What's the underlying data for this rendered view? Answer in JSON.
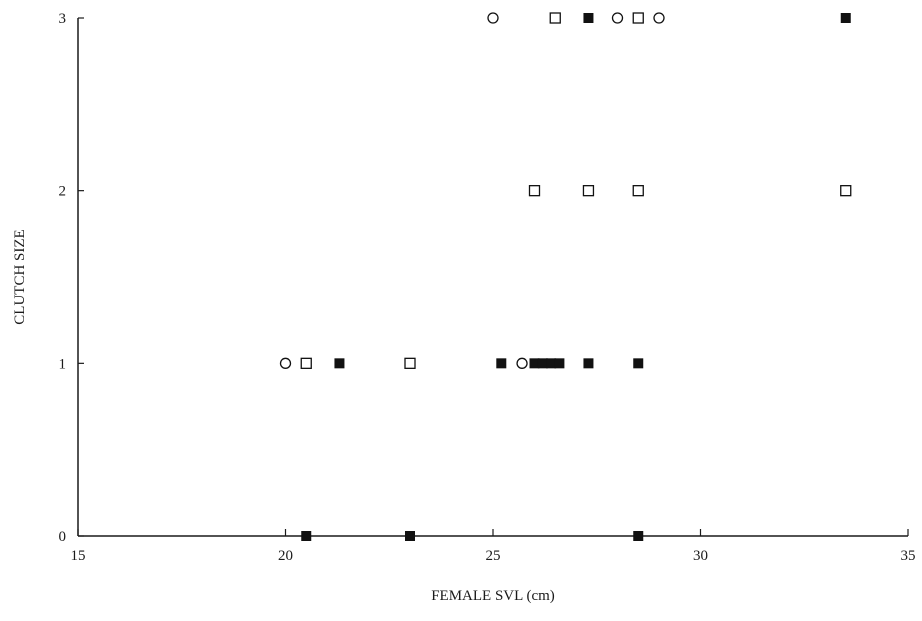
{
  "chart_data": {
    "type": "scatter",
    "title": "",
    "xlabel": "FEMALE SVL (cm)",
    "ylabel": "CLUTCH SIZE",
    "xlim": [
      15,
      35
    ],
    "ylim": [
      0,
      3
    ],
    "x_ticks": [
      "15",
      "20",
      "25",
      "30",
      "35"
    ],
    "y_ticks": [
      "0",
      "1",
      "2",
      "3"
    ],
    "grid": false,
    "legend": "none",
    "marker_colors": {
      "filled": "#111111",
      "open_stroke": "#111111",
      "open_fill": "#ffffff"
    },
    "series": [
      {
        "marker": "filled-square",
        "points": [
          {
            "x": 20.5,
            "y": 0
          },
          {
            "x": 23.0,
            "y": 0
          },
          {
            "x": 28.5,
            "y": 0
          },
          {
            "x": 21.3,
            "y": 1
          },
          {
            "x": 25.2,
            "y": 1
          },
          {
            "x": 26.0,
            "y": 1
          },
          {
            "x": 26.2,
            "y": 1
          },
          {
            "x": 26.4,
            "y": 1
          },
          {
            "x": 26.6,
            "y": 1
          },
          {
            "x": 27.3,
            "y": 1
          },
          {
            "x": 28.5,
            "y": 1
          },
          {
            "x": 27.3,
            "y": 3
          },
          {
            "x": 33.5,
            "y": 3
          }
        ]
      },
      {
        "marker": "open-square",
        "points": [
          {
            "x": 20.5,
            "y": 1
          },
          {
            "x": 23.0,
            "y": 1
          },
          {
            "x": 26.0,
            "y": 2
          },
          {
            "x": 27.3,
            "y": 2
          },
          {
            "x": 28.5,
            "y": 2
          },
          {
            "x": 33.5,
            "y": 2
          },
          {
            "x": 26.5,
            "y": 3
          },
          {
            "x": 28.5,
            "y": 3
          }
        ]
      },
      {
        "marker": "open-circle",
        "points": [
          {
            "x": 20.0,
            "y": 1
          },
          {
            "x": 25.7,
            "y": 1
          },
          {
            "x": 25.0,
            "y": 3
          },
          {
            "x": 28.0,
            "y": 3
          },
          {
            "x": 29.0,
            "y": 3
          }
        ]
      }
    ]
  }
}
